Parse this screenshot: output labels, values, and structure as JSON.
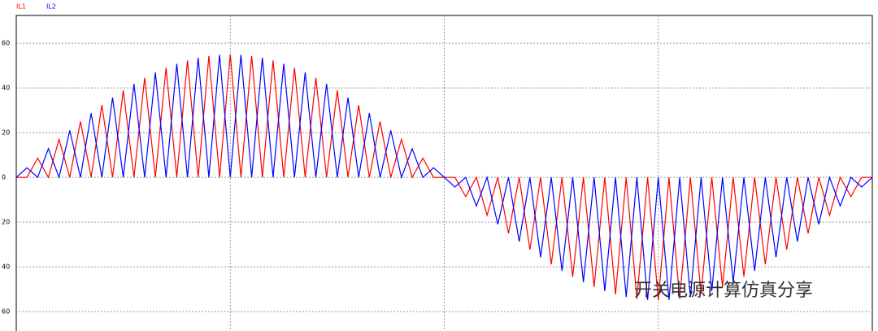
{
  "chart_data": {
    "type": "line",
    "annotations": [
      "开关电源计算仿真分享"
    ],
    "ylim": [
      -68.7,
      72.4
    ],
    "yticks": [
      60,
      40,
      20,
      0,
      {
        "value": -20,
        "label": "20"
      },
      {
        "value": -40,
        "label": "40"
      },
      {
        "value": -60,
        "label": "60"
      }
    ],
    "grid": true,
    "series": [
      {
        "name": "IL1",
        "color": "#ff0000",
        "values": [
          0,
          0,
          8.6,
          0,
          17,
          0,
          25,
          0,
          32.3,
          0,
          38.9,
          0,
          44.5,
          0,
          49,
          0,
          52.3,
          0,
          54.3,
          0,
          55,
          0,
          54.3,
          0,
          52.3,
          0,
          49,
          0,
          44.5,
          0,
          38.9,
          0,
          32.3,
          0,
          25,
          0,
          17,
          0,
          8.6,
          0,
          0,
          0,
          -8.6,
          0,
          -17,
          0,
          -25,
          0,
          -32.3,
          0,
          -38.9,
          0,
          -44.5,
          0,
          -49,
          0,
          -52.3,
          0,
          -54.3,
          0,
          -55,
          0,
          -54.3,
          0,
          -52.3,
          0,
          -49,
          0,
          -44.5,
          0,
          -38.9,
          0,
          -32.3,
          0,
          -25,
          0,
          -17,
          0,
          -8.6,
          0,
          0
        ]
      },
      {
        "name": "IL2",
        "color": "#0000ff",
        "values": [
          0,
          4.3,
          0,
          12.8,
          0,
          21,
          0,
          28.7,
          0,
          35.7,
          0,
          41.8,
          0,
          46.9,
          0,
          50.8,
          0,
          53.5,
          0,
          54.8,
          0,
          54.8,
          0,
          53.5,
          0,
          50.8,
          0,
          46.9,
          0,
          41.8,
          0,
          35.7,
          0,
          28.7,
          0,
          21,
          0,
          12.8,
          0,
          4.3,
          0,
          -4.3,
          0,
          -12.8,
          0,
          -21,
          0,
          -28.7,
          0,
          -35.7,
          0,
          -41.8,
          0,
          -46.9,
          0,
          -50.8,
          0,
          -53.5,
          0,
          -54.8,
          0,
          -54.8,
          0,
          -53.5,
          0,
          -50.8,
          0,
          -46.9,
          0,
          -41.8,
          0,
          -35.7,
          0,
          -28.7,
          0,
          -21,
          0,
          -12.8,
          0,
          -4.3,
          0
        ]
      }
    ]
  }
}
